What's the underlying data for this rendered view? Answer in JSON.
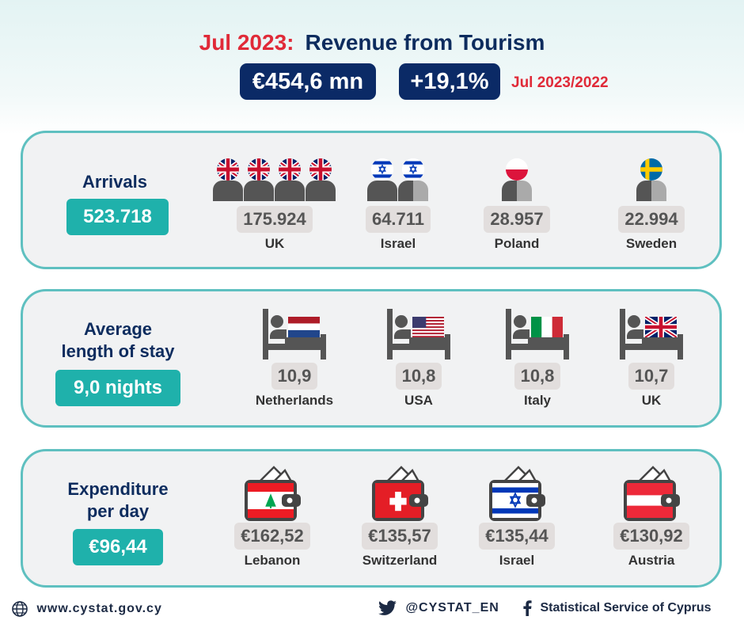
{
  "header": {
    "period": "Jul 2023:",
    "title": "Revenue from Tourism",
    "revenue": "€454,6 mn",
    "change": "+19,1%",
    "comparison": "Jul 2023/2022"
  },
  "arrivals": {
    "label": "Arrivals",
    "total": "523.718",
    "items": [
      {
        "value": "175.924",
        "country": "UK",
        "flag": "uk-flag-icon",
        "people": 4
      },
      {
        "value": "64.711",
        "country": "Israel",
        "flag": "israel-flag-icon",
        "people": 2
      },
      {
        "value": "28.957",
        "country": "Poland",
        "flag": "poland-flag-icon",
        "people": 1
      },
      {
        "value": "22.994",
        "country": "Sweden",
        "flag": "sweden-flag-icon",
        "people": 1
      }
    ]
  },
  "stay": {
    "label_line1": "Average",
    "label_line2": "length of stay",
    "total": "9,0 nights",
    "items": [
      {
        "value": "10,9",
        "country": "Netherlands",
        "flag": "netherlands-flag-icon"
      },
      {
        "value": "10,8",
        "country": "USA",
        "flag": "usa-flag-icon"
      },
      {
        "value": "10,8",
        "country": "Italy",
        "flag": "italy-flag-icon"
      },
      {
        "value": "10,7",
        "country": "UK",
        "flag": "uk-flag-icon"
      }
    ]
  },
  "expenditure": {
    "label_line1": "Expenditure",
    "label_line2": "per day",
    "total": "€96,44",
    "items": [
      {
        "value": "€162,52",
        "country": "Lebanon",
        "flag": "lebanon-flag-icon"
      },
      {
        "value": "€135,57",
        "country": "Switzerland",
        "flag": "switzerland-flag-icon"
      },
      {
        "value": "€135,44",
        "country": "Israel",
        "flag": "israel-flag-icon"
      },
      {
        "value": "€130,92",
        "country": "Austria",
        "flag": "austria-flag-icon"
      }
    ]
  },
  "footer": {
    "website": "www.cystat.gov.cy",
    "twitter": "@CYSTAT_EN",
    "facebook": "Statistical Service of Cyprus"
  },
  "colors": {
    "navy": "#0b2a66",
    "red": "#e02a38",
    "teal": "#1fb1ab",
    "panel_border": "#5fc0c0"
  }
}
